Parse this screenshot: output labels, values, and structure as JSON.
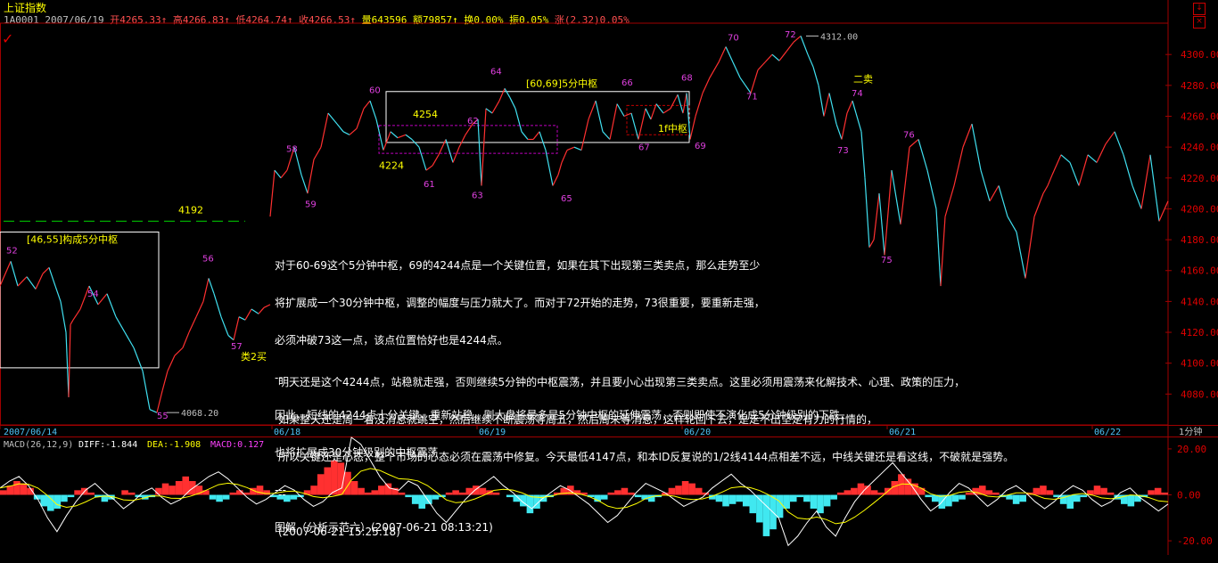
{
  "header": {
    "title": "上证指数",
    "code": "1A0001",
    "date": "2007/06/19",
    "open": "开4265.33",
    "high": "高4266.83",
    "low": "低4264.74",
    "close": "收4266.53",
    "volume": "量643596",
    "amount": "额79857",
    "turnover": "换0.00%",
    "amplitude": "振0.05%",
    "change": "涨(2.32)0.05%"
  },
  "window_controls": {
    "minimize": "↓",
    "close": "×"
  },
  "annotations": {
    "note_lines": [
      "对于60-69这个5分钟中枢，69的4244点是一个关键位置，如果在其下出现第三类卖点，那么走势至少",
      "将扩展成一个30分钟中枢，调整的幅度与压力就大了。而对于72开始的走势，73很重要，要重新走强，",
      "必须冲破73这一点，该点位置恰好也是4244点。",
      "--",
      "因此，短线的4244点十分关键，重新站稳，则大盘将最多是5分钟中枢的延伸震荡，否则即使不演化成5分钟级别的下跌，",
      "也将扩展成30分钟级别的中枢震荡",
      "---",
      "图解（分析示范六）(2007-06-21 08:13:21)"
    ],
    "note2_lines": [
      "明天还是这个4244点，站稳就走强，否则继续5分钟的中枢震荡，并且要小心出现第三类卖点。这里必须用震荡来化解技术、心理、政策的压力，",
      "如果整天还是周一着没消息就跳空，然后继续不断震荡等周五，然后周末等消息，这样轮回下去，是走不出坚定有力的行情的，",
      "所以关键还是心态，整个市场的心态必须在震荡中修复。今天最低4147点，和本ID反复说的1/2线4144点相差不远，中线关键还是看这线，不破就是强势。",
      "--",
      "(2007-06-21 15:25:18)"
    ]
  },
  "chart_data": [
    {
      "type": "line",
      "name": "price",
      "yticks": [
        4080,
        4100,
        4120,
        4140,
        4160,
        4180,
        4200,
        4220,
        4240,
        4260,
        4280,
        4300
      ],
      "ylim": [
        4060,
        4318
      ],
      "xlim": [
        0,
        1310
      ],
      "xlabels": [
        {
          "x": 0,
          "label": "2007/06/14"
        },
        {
          "x": 305,
          "label": "06/18"
        },
        {
          "x": 535,
          "label": "06/19"
        },
        {
          "x": 765,
          "label": "06/20"
        },
        {
          "x": 995,
          "label": "06/21"
        },
        {
          "x": 1225,
          "label": "06/22"
        }
      ],
      "period_label": "1分钟",
      "series": [
        {
          "x": [
            0,
            12,
            20,
            30,
            40,
            48,
            55,
            62,
            68,
            74,
            77,
            79,
            82,
            90,
            100,
            110,
            120,
            130,
            140,
            150,
            160,
            168,
            176,
            182,
            188,
            196,
            205,
            212,
            220,
            228,
            234,
            240,
            248,
            256,
            262,
            268,
            275,
            282,
            290,
            296,
            303
          ],
          "y": [
            4150,
            4166,
            4150,
            4156,
            4148,
            4158,
            4162,
            4150,
            4140,
            4120,
            4078,
            4125,
            4128,
            4135,
            4150,
            4138,
            4145,
            4130,
            4120,
            4110,
            4095,
            4070,
            4068,
            4082,
            4095,
            4105,
            4110,
            4120,
            4130,
            4140,
            4155,
            4145,
            4130,
            4118,
            4115,
            4130,
            4128,
            4135,
            4132,
            4136,
            4138
          ]
        },
        {
          "x": [
            303,
            308,
            315,
            322,
            330,
            338,
            345,
            352,
            360,
            368,
            378,
            385,
            392,
            400,
            408,
            415,
            422,
            430,
            438,
            446,
            455,
            462,
            470,
            478,
            485,
            492,
            500,
            508,
            515,
            522,
            530,
            536,
            540,
            545,
            552,
            560,
            566,
            572,
            578,
            585,
            592,
            598,
            605,
            612,
            620,
            626,
            630,
            636,
            644,
            652,
            660,
            668,
            676,
            684,
            692,
            700,
            708,
            716,
            724,
            730,
            736,
            744,
            752,
            760,
            766,
            770,
            774,
            780,
            788,
            796,
            806,
            814,
            822,
            830,
            836,
            842,
            850,
            858,
            866,
            874,
            882,
            890,
            898,
            906,
            912,
            918,
            924,
            930,
            938,
            944,
            950,
            956,
            960,
            966,
            970,
            975,
            980,
            986,
            992,
            1000,
            1010,
            1020,
            1030,
            1040,
            1050,
            1055,
            1060,
            1070,
            1080,
            1090,
            1100,
            1110,
            1120,
            1130,
            1140,
            1150,
            1160,
            1170,
            1175,
            1180,
            1190,
            1200,
            1210,
            1220,
            1230,
            1240,
            1250,
            1260,
            1270,
            1280,
            1290,
            1300,
            1310
          ],
          "y": [
            4195,
            4225,
            4220,
            4225,
            4240,
            4222,
            4210,
            4232,
            4240,
            4262,
            4255,
            4250,
            4248,
            4252,
            4265,
            4270,
            4258,
            4238,
            4250,
            4246,
            4248,
            4245,
            4240,
            4225,
            4228,
            4235,
            4245,
            4230,
            4240,
            4248,
            4255,
            4258,
            4215,
            4265,
            4262,
            4270,
            4278,
            4272,
            4265,
            4250,
            4245,
            4245,
            4250,
            4238,
            4215,
            4222,
            4230,
            4238,
            4240,
            4238,
            4258,
            4270,
            4250,
            4245,
            4268,
            4260,
            4262,
            4245,
            4265,
            4258,
            4268,
            4262,
            4265,
            4274,
            4262,
            4275,
            4245,
            4260,
            4275,
            4285,
            4295,
            4305,
            4295,
            4285,
            4280,
            4275,
            4290,
            4295,
            4300,
            4296,
            4302,
            4308,
            4312,
            4300,
            4292,
            4280,
            4260,
            4275,
            4255,
            4245,
            4262,
            4270,
            4262,
            4250,
            4220,
            4175,
            4180,
            4210,
            4170,
            4225,
            4190,
            4240,
            4245,
            4225,
            4200,
            4150,
            4195,
            4215,
            4240,
            4255,
            4225,
            4205,
            4215,
            4195,
            4185,
            4155,
            4195,
            4210,
            4215,
            4222,
            4235,
            4230,
            4215,
            4235,
            4230,
            4242,
            4250,
            4235,
            4215,
            4200,
            4235,
            4192,
            4205
          ]
        }
      ],
      "point_labels": [
        {
          "x": 13,
          "y": 4171,
          "text": "52"
        },
        {
          "x": 104,
          "y": 4143,
          "text": "54"
        },
        {
          "x": 182,
          "y": 4064,
          "text": "55"
        },
        {
          "x": 233,
          "y": 4166,
          "text": "56"
        },
        {
          "x": 265,
          "y": 4109,
          "text": "57"
        },
        {
          "x": 327,
          "y": 4237,
          "text": "58"
        },
        {
          "x": 348,
          "y": 4201,
          "text": "59"
        },
        {
          "x": 420,
          "y": 4275,
          "text": "60"
        },
        {
          "x": 481,
          "y": 4214,
          "text": "61"
        },
        {
          "x": 530,
          "y": 4255,
          "text": "62"
        },
        {
          "x": 535,
          "y": 4207,
          "text": "63"
        },
        {
          "x": 556,
          "y": 4287,
          "text": "64"
        },
        {
          "x": 635,
          "y": 4205,
          "text": "65"
        },
        {
          "x": 703,
          "y": 4280,
          "text": "66"
        },
        {
          "x": 722,
          "y": 4238,
          "text": "67"
        },
        {
          "x": 770,
          "y": 4283,
          "text": "68"
        },
        {
          "x": 785,
          "y": 4239,
          "text": "69"
        },
        {
          "x": 822,
          "y": 4309,
          "text": "70"
        },
        {
          "x": 843,
          "y": 4271,
          "text": "71"
        },
        {
          "x": 886,
          "y": 4311,
          "text": "72"
        },
        {
          "x": 945,
          "y": 4236,
          "text": "73"
        },
        {
          "x": 961,
          "y": 4273,
          "text": "74"
        },
        {
          "x": 994,
          "y": 4165,
          "text": "75"
        },
        {
          "x": 1019,
          "y": 4246,
          "text": "76"
        }
      ],
      "value_labels": [
        {
          "x": 203,
          "y": 4068,
          "text": "4068.20"
        },
        {
          "x": 920,
          "y": 4312,
          "text": "4312.00"
        }
      ],
      "annotations": [
        {
          "x": 30,
          "y": 4178,
          "text": "[46,55]构成5分中枢"
        },
        {
          "x": 590,
          "y": 4279,
          "text": "[60,69]5分中枢"
        },
        {
          "x": 463,
          "y": 4259,
          "text": "4254"
        },
        {
          "x": 425,
          "y": 4226,
          "text": "4224"
        },
        {
          "x": 200,
          "y": 4197,
          "text": "4192"
        },
        {
          "x": 738,
          "y": 4250,
          "text": "1f中枢"
        },
        {
          "x": 957,
          "y": 4282,
          "text": "二卖"
        },
        {
          "x": 270,
          "y": 4102,
          "text": "类2买"
        }
      ],
      "hline_4192": 4192,
      "zones": [
        {
          "name": "zs-46-55",
          "x0": 0,
          "x1": 178,
          "y0": 4097,
          "y1": 4185,
          "color": "#ffffff"
        },
        {
          "name": "zs-60-69",
          "x0": 433,
          "x1": 773,
          "y0": 4243,
          "y1": 4276,
          "color": "#ffffff"
        },
        {
          "name": "zs-4224-4254",
          "x0": 425,
          "x1": 625,
          "y0": 4236,
          "y1": 4254,
          "color": "#c000c0",
          "dashed": true
        },
        {
          "name": "zs-1f",
          "x0": 703,
          "x1": 773,
          "y0": 4248,
          "y1": 4267,
          "color": "#c00000",
          "dashed": true
        }
      ]
    },
    {
      "type": "bar",
      "name": "MACD",
      "params": "MACD(26,12,9)",
      "diff_label": "DIFF:-1.844",
      "dea_label": "DEA:-1.908",
      "macd_label": "MACD:0.127",
      "yticks": [
        20.0,
        0.0,
        -20.0
      ],
      "ylim": [
        -25,
        25
      ],
      "hist": [
        2,
        4,
        6,
        5,
        3,
        -2,
        -5,
        -7,
        -6,
        -3,
        -1,
        2,
        3,
        1,
        -1,
        -3,
        -2,
        0,
        2,
        1,
        -1,
        -2,
        -1,
        3,
        5,
        4,
        6,
        8,
        6,
        4,
        2,
        -2,
        -3,
        -2,
        1,
        2,
        1,
        3,
        4,
        2,
        -1,
        -2,
        -3,
        -2,
        -1,
        2,
        4,
        9,
        12,
        15,
        14,
        10,
        6,
        3,
        1,
        2,
        4,
        5,
        3,
        1,
        -1,
        -4,
        -6,
        -4,
        -2,
        -1,
        1,
        2,
        1,
        3,
        4,
        3,
        2,
        1,
        0,
        -1,
        -3,
        -5,
        -8,
        -6,
        -3,
        -1,
        1,
        3,
        4,
        2,
        1,
        -1,
        -3,
        -2,
        1,
        2,
        3,
        1,
        -1,
        -2,
        -3,
        -1,
        1,
        3,
        4,
        6,
        5,
        3,
        1,
        -2,
        -3,
        -5,
        -4,
        -3,
        -5,
        -8,
        -12,
        -18,
        -15,
        -10,
        -6,
        -3,
        -1,
        -3,
        -6,
        -8,
        -5,
        -2,
        1,
        2,
        3,
        5,
        4,
        2,
        1,
        3,
        6,
        9,
        7,
        5,
        3,
        -1,
        -3,
        -6,
        -5,
        -3,
        -2,
        1,
        3,
        4,
        2,
        1,
        -1,
        -2,
        -4,
        -3,
        1,
        3,
        4,
        2,
        -1,
        -4,
        -6,
        -3,
        -1,
        2,
        4,
        3,
        1,
        -2,
        -4,
        -5,
        -3,
        -1,
        2,
        3,
        1
      ],
      "diff": [
        3,
        6,
        8,
        4,
        -2,
        -10,
        -16,
        -9,
        -3,
        2,
        5,
        1,
        -2,
        -6,
        -3,
        1,
        3,
        -1,
        -4,
        -2,
        2,
        5,
        8,
        10,
        7,
        3,
        -1,
        -4,
        -2,
        1,
        4,
        2,
        -2,
        -5,
        -3,
        1,
        3,
        25,
        22,
        15,
        8,
        3,
        2,
        6,
        4,
        -2,
        -8,
        -12,
        -7,
        -2,
        2,
        5,
        8,
        4,
        1,
        -3,
        -6,
        -2,
        1,
        4,
        2,
        -1,
        -4,
        -8,
        -12,
        -9,
        -4,
        1,
        5,
        3,
        1,
        -2,
        -5,
        -3,
        -1,
        3,
        6,
        9,
        5,
        2,
        -2,
        -6,
        -10,
        -22,
        -18,
        -12,
        -7,
        -14,
        -18,
        -10,
        -3,
        2,
        6,
        10,
        14,
        9,
        4,
        -2,
        -7,
        -4,
        1,
        5,
        3,
        -1,
        -5,
        -2,
        2,
        4,
        1,
        -3,
        -6,
        -3,
        1,
        4,
        2,
        -2,
        -5,
        -3,
        1,
        3,
        -1,
        -4,
        -7,
        -4
      ]
    }
  ]
}
